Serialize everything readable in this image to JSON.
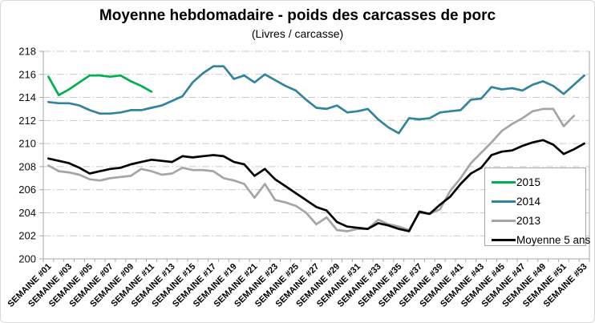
{
  "chart_data": {
    "type": "line",
    "title": "Moyenne hebdomadaire - poids des carcasses de porc",
    "subtitle": "(Livres / carcasse)",
    "ylim": [
      200,
      218
    ],
    "y_step": 2,
    "y_ticks": [
      200,
      202,
      204,
      206,
      208,
      210,
      212,
      214,
      216,
      218
    ],
    "weeks_total": 53,
    "x_ticks_shown": [
      "SEMAINE #01",
      "SEMAINE #03",
      "SEMAINE #05",
      "SEMAINE #07",
      "SEMAINE #09",
      "SEMAINE #11",
      "SEMAINE #13",
      "SEMAINE #15",
      "SEMAINE #17",
      "SEMAINE #19",
      "SEMAINE #21",
      "SEMAINE #23",
      "SEMAINE #25",
      "SEMAINE #27",
      "SEMAINE #29",
      "SEMAINE #31",
      "SEMAINE #33",
      "SEMAINE #35",
      "SEMAINE #37",
      "SEMAINE #39",
      "SEMAINE #41",
      "SEMAINE #43",
      "SEMAINE #45",
      "SEMAINE #47",
      "SEMAINE #49",
      "SEMAINE #51",
      "SEMAINE #53"
    ],
    "grid": "horizontal-dash-dot",
    "legend_position": "right-middle",
    "series": [
      {
        "name": "2015",
        "color": "#00B050",
        "values": [
          215.8,
          214.2,
          214.7,
          215.3,
          215.9,
          215.9,
          215.8,
          215.9,
          215.4,
          215.0,
          214.5
        ]
      },
      {
        "name": "2014",
        "color": "#31849B",
        "values": [
          213.6,
          213.5,
          213.5,
          213.3,
          212.9,
          212.6,
          212.6,
          212.7,
          212.9,
          212.9,
          213.1,
          213.3,
          213.7,
          214.1,
          215.3,
          216.1,
          216.7,
          216.7,
          215.6,
          215.9,
          215.3,
          216.0,
          215.5,
          215.0,
          214.6,
          213.8,
          213.1,
          213.0,
          213.3,
          212.7,
          212.8,
          213.0,
          212.1,
          211.4,
          210.9,
          212.2,
          212.1,
          212.2,
          212.7,
          212.8,
          212.9,
          213.8,
          213.9,
          214.9,
          214.7,
          214.8,
          214.6,
          215.1,
          215.4,
          215.0,
          214.3,
          215.1,
          215.9
        ]
      },
      {
        "name": "2013",
        "color": "#A5A5A5",
        "values": [
          208.1,
          207.6,
          207.5,
          207.3,
          206.9,
          206.8,
          207.0,
          207.1,
          207.2,
          207.8,
          207.6,
          207.3,
          207.4,
          207.9,
          207.7,
          207.7,
          207.6,
          207.0,
          206.8,
          206.5,
          205.3,
          206.5,
          205.1,
          204.9,
          204.6,
          204.0,
          203.0,
          203.6,
          202.5,
          202.4,
          202.6,
          202.6,
          203.4,
          203.0,
          202.8,
          202.5,
          204.0,
          203.9,
          204.3,
          205.9,
          207.0,
          208.3,
          209.2,
          210.1,
          211.1,
          211.7,
          212.2,
          212.8,
          213.0,
          213.0,
          211.5,
          212.4
        ]
      },
      {
        "name": "Moyenne 5 ans",
        "color": "#000000",
        "values": [
          208.7,
          208.5,
          208.3,
          207.9,
          207.4,
          207.6,
          207.8,
          207.9,
          208.2,
          208.4,
          208.6,
          208.5,
          208.4,
          208.9,
          208.8,
          208.9,
          209.0,
          208.9,
          208.4,
          208.2,
          207.2,
          207.8,
          206.9,
          206.3,
          205.7,
          205.1,
          204.5,
          204.2,
          203.2,
          202.8,
          202.7,
          202.6,
          203.1,
          202.9,
          202.6,
          202.4,
          204.1,
          203.9,
          204.7,
          205.4,
          206.5,
          207.4,
          207.9,
          209.0,
          209.3,
          209.4,
          209.8,
          210.1,
          210.3,
          209.9,
          209.1,
          209.5,
          210.0
        ]
      }
    ]
  }
}
